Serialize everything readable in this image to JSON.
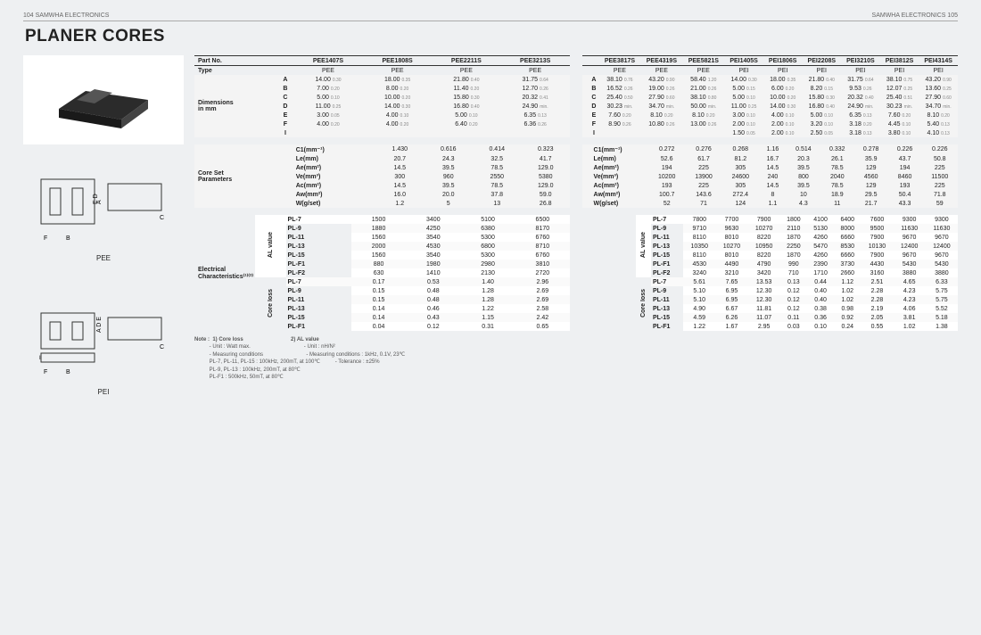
{
  "header": {
    "left": "104   SAMWHA ELECTRONICS",
    "right": "SAMWHA ELECTRONICS   105"
  },
  "title": "PLANER CORES",
  "leftCaptions": {
    "pee": "PEE",
    "pei": "PEI"
  },
  "table1": {
    "partNoLabel": "Part No.",
    "parts": [
      "PEE1407S",
      "PEE1808S",
      "PEE2211S",
      "PEE3213S"
    ],
    "typeLabel": "Type",
    "types": [
      "PEE",
      "PEE",
      "PEE",
      "PEE"
    ],
    "dimLabel": "Dimensions\nin mm",
    "dimRows": [
      {
        "k": "A",
        "v": [
          "14.00",
          "18.00",
          "21.80",
          "31.75"
        ],
        "t": [
          "0.30",
          "0.35",
          "0.40",
          "0.64"
        ]
      },
      {
        "k": "B",
        "v": [
          "7.00",
          "8.00",
          "11.40",
          "12.70"
        ],
        "t": [
          "0.20",
          "0.20",
          "0.20",
          "0.26"
        ]
      },
      {
        "k": "C",
        "v": [
          "5.00",
          "10.00",
          "15.80",
          "20.32"
        ],
        "t": [
          "0.10",
          "0.20",
          "0.30",
          "0.41"
        ]
      },
      {
        "k": "D",
        "v": [
          "11.00",
          "14.00",
          "16.80",
          "24.90"
        ],
        "t": [
          "0.25",
          "0.30",
          "0.40",
          "min."
        ]
      },
      {
        "k": "E",
        "v": [
          "3.00",
          "4.00",
          "5.00",
          "6.35"
        ],
        "t": [
          "0.05",
          "0.10",
          "0.10",
          "0.13"
        ]
      },
      {
        "k": "F",
        "v": [
          "4.00",
          "4.00",
          "6.40",
          "6.36"
        ],
        "t": [
          "0.20",
          "0.20",
          "0.20",
          "0.26"
        ]
      },
      {
        "k": "I",
        "v": [
          "",
          "",
          "",
          ""
        ],
        "t": [
          "",
          "",
          "",
          ""
        ]
      }
    ],
    "coreLabel": "Core Set\nParameters",
    "coreRows": [
      {
        "k": "C1(mm⁻¹)",
        "v": [
          "1.430",
          "0.616",
          "0.414",
          "0.323"
        ]
      },
      {
        "k": "Le(mm)",
        "v": [
          "20.7",
          "24.3",
          "32.5",
          "41.7"
        ]
      },
      {
        "k": "Ae(mm²)",
        "v": [
          "14.5",
          "39.5",
          "78.5",
          "129.0"
        ]
      },
      {
        "k": "Ve(mm³)",
        "v": [
          "300",
          "960",
          "2550",
          "5380"
        ]
      },
      {
        "k": "Ac(mm²)",
        "v": [
          "14.5",
          "39.5",
          "78.5",
          "129.0"
        ]
      },
      {
        "k": "Aw(mm²)",
        "v": [
          "16.0",
          "20.0",
          "37.8",
          "59.0"
        ]
      },
      {
        "k": "W(g/set)",
        "v": [
          "1.2",
          "5",
          "13",
          "26.8"
        ]
      }
    ],
    "elecLabel": "Electrical\nCharacteristics⁽¹⁾⁽²⁾",
    "alLabel": "AL value",
    "alRows": [
      {
        "k": "PL-7",
        "v": [
          "1500",
          "3400",
          "5100",
          "6500"
        ]
      },
      {
        "k": "PL-9",
        "v": [
          "1880",
          "4250",
          "6380",
          "8170"
        ]
      },
      {
        "k": "PL-11",
        "v": [
          "1560",
          "3540",
          "5300",
          "6760"
        ]
      },
      {
        "k": "PL-13",
        "v": [
          "2000",
          "4530",
          "6800",
          "8710"
        ]
      },
      {
        "k": "PL-15",
        "v": [
          "1560",
          "3540",
          "5300",
          "6760"
        ]
      },
      {
        "k": "PL-F1",
        "v": [
          "880",
          "1980",
          "2980",
          "3810"
        ]
      },
      {
        "k": "PL-F2",
        "v": [
          "630",
          "1410",
          "2130",
          "2720"
        ]
      }
    ],
    "clLabel": "Core loss",
    "clRows": [
      {
        "k": "PL-7",
        "v": [
          "0.17",
          "0.53",
          "1.40",
          "2.96"
        ]
      },
      {
        "k": "PL-9",
        "v": [
          "0.15",
          "0.48",
          "1.28",
          "2.69"
        ]
      },
      {
        "k": "PL-11",
        "v": [
          "0.15",
          "0.48",
          "1.28",
          "2.69"
        ]
      },
      {
        "k": "PL-13",
        "v": [
          "0.14",
          "0.46",
          "1.22",
          "2.58"
        ]
      },
      {
        "k": "PL-15",
        "v": [
          "0.14",
          "0.43",
          "1.15",
          "2.42"
        ]
      },
      {
        "k": "PL-F1",
        "v": [
          "0.04",
          "0.12",
          "0.31",
          "0.65"
        ]
      }
    ]
  },
  "table2": {
    "parts": [
      "PEE3817S",
      "PEE4319S",
      "PEE5821S",
      "PEI1405S",
      "PEI1806S",
      "PEI2208S",
      "PEI3210S",
      "PEI3812S",
      "PEI4314S"
    ],
    "types": [
      "PEE",
      "PEE",
      "PEE",
      "PEI",
      "PEI",
      "PEI",
      "PEI",
      "PEI",
      "PEI"
    ],
    "dimRows": [
      {
        "k": "A",
        "v": [
          "38.10",
          "43.20",
          "58.40",
          "14.00",
          "18.00",
          "21.80",
          "31.75",
          "38.10",
          "43.20"
        ],
        "t": [
          "0.76",
          "0.90",
          "1.20",
          "0.30",
          "0.35",
          "0.40",
          "0.64",
          "0.75",
          "0.90"
        ]
      },
      {
        "k": "B",
        "v": [
          "16.52",
          "19.00",
          "21.00",
          "5.00",
          "6.00",
          "8.20",
          "9.53",
          "12.07",
          "13.60"
        ],
        "t": [
          "0.26",
          "0.26",
          "0.26",
          "0.15",
          "0.20",
          "0.15",
          "0.26",
          "0.25",
          "0.25"
        ]
      },
      {
        "k": "C",
        "v": [
          "25.40",
          "27.90",
          "38.10",
          "5.00",
          "10.00",
          "15.80",
          "20.32",
          "25.40",
          "27.90"
        ],
        "t": [
          "0.50",
          "0.60",
          "0.80",
          "0.10",
          "0.20",
          "0.30",
          "0.40",
          "0.51",
          "0.60"
        ]
      },
      {
        "k": "D",
        "v": [
          "30.23",
          "34.70",
          "50.00",
          "11.00",
          "14.00",
          "16.80",
          "24.90",
          "30.23",
          "34.70"
        ],
        "t": [
          "min.",
          "min.",
          "min.",
          "0.25",
          "0.30",
          "0.40",
          "min.",
          "min.",
          "min."
        ]
      },
      {
        "k": "E",
        "v": [
          "7.60",
          "8.10",
          "8.10",
          "3.00",
          "4.00",
          "5.00",
          "6.35",
          "7.60",
          "8.10"
        ],
        "t": [
          "0.20",
          "0.20",
          "0.20",
          "0.10",
          "0.10",
          "0.10",
          "0.13",
          "0.20",
          "0.20"
        ]
      },
      {
        "k": "F",
        "v": [
          "8.90",
          "10.80",
          "13.00",
          "2.00",
          "2.00",
          "3.20",
          "3.18",
          "4.45",
          "5.40"
        ],
        "t": [
          "0.26",
          "0.26",
          "0.26",
          "0.10",
          "0.10",
          "0.10",
          "0.20",
          "0.10",
          "0.13"
        ]
      },
      {
        "k": "I",
        "v": [
          "",
          "",
          "",
          "1.50",
          "2.00",
          "2.50",
          "3.18",
          "3.80",
          "4.10"
        ],
        "t": [
          "",
          "",
          "",
          "0.05",
          "0.10",
          "0.05",
          "0.13",
          "0.10",
          "0.13"
        ]
      }
    ],
    "coreRows": [
      {
        "k": "C1(mm⁻¹)",
        "v": [
          "0.272",
          "0.276",
          "0.268",
          "1.16",
          "0.514",
          "0.332",
          "0.278",
          "0.226",
          "0.226"
        ]
      },
      {
        "k": "Le(mm)",
        "v": [
          "52.6",
          "61.7",
          "81.2",
          "16.7",
          "20.3",
          "26.1",
          "35.9",
          "43.7",
          "50.8"
        ]
      },
      {
        "k": "Ae(mm²)",
        "v": [
          "194",
          "225",
          "305",
          "14.5",
          "39.5",
          "78.5",
          "129",
          "194",
          "225"
        ]
      },
      {
        "k": "Ve(mm³)",
        "v": [
          "10200",
          "13900",
          "24600",
          "240",
          "800",
          "2040",
          "4560",
          "8460",
          "11500"
        ]
      },
      {
        "k": "Ac(mm²)",
        "v": [
          "193",
          "225",
          "305",
          "14.5",
          "39.5",
          "78.5",
          "129",
          "193",
          "225"
        ]
      },
      {
        "k": "Aw(mm²)",
        "v": [
          "100.7",
          "143.6",
          "272.4",
          "8",
          "10",
          "18.9",
          "29.5",
          "50.4",
          "71.8"
        ]
      },
      {
        "k": "W(g/set)",
        "v": [
          "52",
          "71",
          "124",
          "1.1",
          "4.3",
          "11",
          "21.7",
          "43.3",
          "59"
        ]
      }
    ],
    "alRows": [
      {
        "k": "PL-7",
        "v": [
          "7800",
          "7700",
          "7900",
          "1800",
          "4100",
          "6400",
          "7600",
          "9300",
          "9300"
        ]
      },
      {
        "k": "PL-9",
        "v": [
          "9710",
          "9630",
          "10270",
          "2110",
          "5130",
          "8000",
          "9500",
          "11630",
          "11630"
        ]
      },
      {
        "k": "PL-11",
        "v": [
          "8110",
          "8010",
          "8220",
          "1870",
          "4260",
          "6660",
          "7900",
          "9670",
          "9670"
        ]
      },
      {
        "k": "PL-13",
        "v": [
          "10350",
          "10270",
          "10950",
          "2250",
          "5470",
          "8530",
          "10130",
          "12400",
          "12400"
        ]
      },
      {
        "k": "PL-15",
        "v": [
          "8110",
          "8010",
          "8220",
          "1870",
          "4260",
          "6660",
          "7900",
          "9670",
          "9670"
        ]
      },
      {
        "k": "PL-F1",
        "v": [
          "4530",
          "4490",
          "4790",
          "990",
          "2390",
          "3730",
          "4430",
          "5430",
          "5430"
        ]
      },
      {
        "k": "PL-F2",
        "v": [
          "3240",
          "3210",
          "3420",
          "710",
          "1710",
          "2660",
          "3160",
          "3880",
          "3880"
        ]
      }
    ],
    "clRows": [
      {
        "k": "PL-7",
        "v": [
          "5.61",
          "7.65",
          "13.53",
          "0.13",
          "0.44",
          "1.12",
          "2.51",
          "4.65",
          "6.33"
        ]
      },
      {
        "k": "PL-9",
        "v": [
          "5.10",
          "6.95",
          "12.30",
          "0.12",
          "0.40",
          "1.02",
          "2.28",
          "4.23",
          "5.75"
        ]
      },
      {
        "k": "PL-11",
        "v": [
          "5.10",
          "6.95",
          "12.30",
          "0.12",
          "0.40",
          "1.02",
          "2.28",
          "4.23",
          "5.75"
        ]
      },
      {
        "k": "PL-13",
        "v": [
          "4.90",
          "6.67",
          "11.81",
          "0.12",
          "0.38",
          "0.98",
          "2.19",
          "4.06",
          "5.52"
        ]
      },
      {
        "k": "PL-15",
        "v": [
          "4.59",
          "6.26",
          "11.07",
          "0.11",
          "0.36",
          "0.92",
          "2.05",
          "3.81",
          "5.18"
        ]
      },
      {
        "k": "PL-F1",
        "v": [
          "1.22",
          "1.67",
          "2.95",
          "0.03",
          "0.10",
          "0.24",
          "0.55",
          "1.02",
          "1.38"
        ]
      }
    ]
  },
  "notes": {
    "head": "Note :",
    "n1": "1) Core loss",
    "n1a": "- Unit : Watt max.",
    "n1b": "- Measuring conditions",
    "n1c": "PL-7, PL-11, PL-15   : 100kHz, 200mT, at 100℃",
    "n1d": "PL-9, PL-13             : 100kHz, 200mT, at 80℃",
    "n1e": "PL-F1                      : 500kHz, 50mT, at 80℃",
    "n2": "2) AL value",
    "n2a": "- Unit : nH/N²",
    "n2b": "- Measuring conditions : 1kHz, 0.1V, 23℃",
    "n2c": "- Tolerance : ±25%"
  },
  "styling": {
    "bg": "#eef0f2",
    "font": "Arial",
    "headerFont": 7,
    "titleFont": 19,
    "cellFont": 7,
    "stripeA": "#fff",
    "stripeB": "#fafafa",
    "border": "#333",
    "tolColor": "#888"
  }
}
